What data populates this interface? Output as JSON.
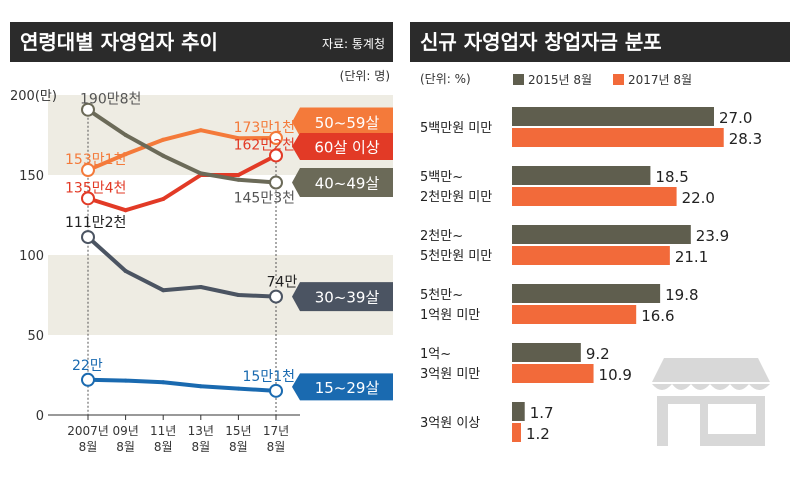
{
  "colors": {
    "header_bg": "#2b2b2b",
    "header_text": "#ffffff",
    "band": "#eeece3",
    "age50": "#f47a3a",
    "age60": "#e23a26",
    "age40": "#6b6a58",
    "age30": "#4b5462",
    "age15": "#1a6ab0",
    "bar2015": "#5f5e4e",
    "bar2017": "#f26a3a",
    "axis_text": "#333333"
  },
  "chart_data": [
    {
      "type": "line",
      "title": "연령대별 자영업자 추이",
      "source": "자료: 통계청",
      "unit": "(단위: 명)",
      "ylim": [
        0,
        200
      ],
      "yticks": [
        0,
        50,
        100,
        150
      ],
      "ytick_top_label": "200(만)",
      "x_labels": [
        {
          "year": "2007년",
          "month": "8월"
        },
        {
          "year": "09년",
          "month": "8월"
        },
        {
          "year": "11년",
          "month": "8월"
        },
        {
          "year": "13년",
          "month": "8월"
        },
        {
          "year": "15년",
          "month": "8월"
        },
        {
          "year": "17년",
          "month": "8월"
        }
      ],
      "series": [
        {
          "key": "age50",
          "name": "50~59살",
          "values": [
            153.1,
            163,
            172,
            178,
            173,
            173.1
          ],
          "start_label": "153만1천",
          "end_label": "173만1천"
        },
        {
          "key": "age60",
          "name": "60살 이상",
          "values": [
            135.4,
            128,
            135,
            150,
            150,
            162.2
          ],
          "start_label": "135만4천",
          "end_label": "162만2천"
        },
        {
          "key": "age40",
          "name": "40~49살",
          "values": [
            190.8,
            175,
            162,
            151,
            147,
            145.3
          ],
          "start_label": "190만8천",
          "end_label": "145만3천"
        },
        {
          "key": "age30",
          "name": "30~39살",
          "values": [
            111.2,
            90,
            78,
            80,
            75,
            74
          ],
          "start_label": "111만2천",
          "end_label": "74만"
        },
        {
          "key": "age15",
          "name": "15~29살",
          "values": [
            22,
            21.5,
            20.5,
            18,
            16.5,
            15.1
          ],
          "start_label": "22만",
          "end_label": "15만1천"
        }
      ]
    },
    {
      "type": "bar",
      "title": "신규 자영업자 창업자금 분포",
      "unit": "(단위: %)",
      "legend": [
        "2015년 8월",
        "2017년 8월"
      ],
      "xlim": [
        0,
        30
      ],
      "categories": [
        {
          "line1": "5백만원 미만",
          "line2": ""
        },
        {
          "line1": "5백만~",
          "line2": "2천만원 미만"
        },
        {
          "line1": "2천만~",
          "line2": "5천만원 미만"
        },
        {
          "line1": "5천만~",
          "line2": "1억원 미만"
        },
        {
          "line1": "1억~",
          "line2": "3억원 미만"
        },
        {
          "line1": "3억원 이상",
          "line2": ""
        }
      ],
      "series": [
        {
          "name": "2015년 8월",
          "values": [
            27.0,
            18.5,
            23.9,
            19.8,
            9.2,
            1.7
          ],
          "labels": [
            "27.0",
            "18.5",
            "23.9",
            "19.8",
            "9.2",
            "1.7"
          ]
        },
        {
          "name": "2017년 8월",
          "values": [
            28.3,
            22.0,
            21.1,
            16.6,
            10.9,
            1.2
          ],
          "labels": [
            "28.3",
            "22.0",
            "21.1",
            "16.6",
            "10.9",
            "1.2"
          ]
        }
      ]
    }
  ]
}
